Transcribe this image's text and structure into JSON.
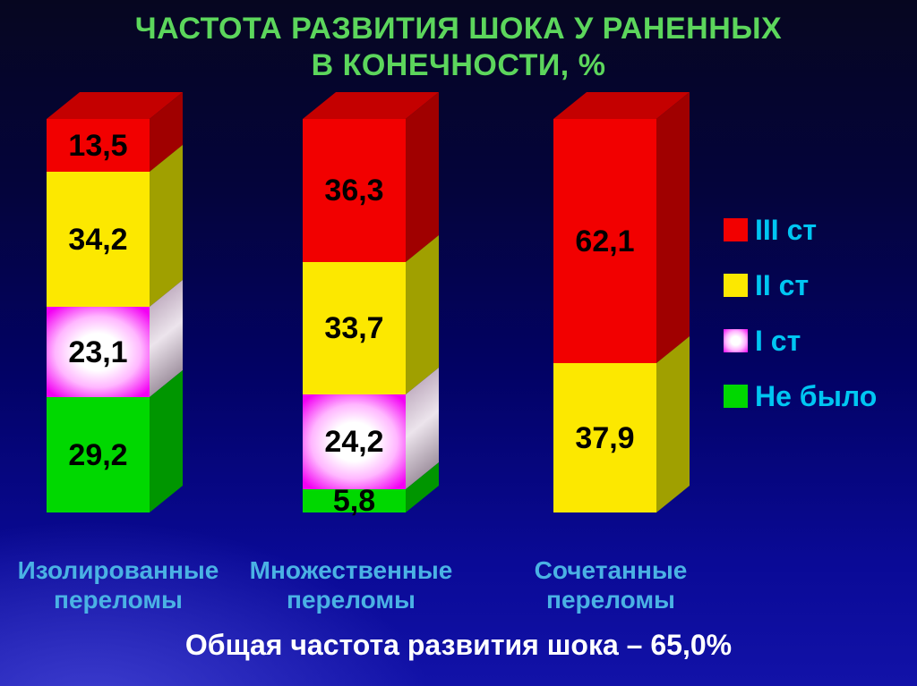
{
  "slide": {
    "title": "ЧАСТОТА РАЗВИТИЯ ШОКА У РАНЕННЫХ\nВ КОНЕЧНОСТИ, %",
    "footer": "Общая частота развития шока – 65,0%"
  },
  "legend": {
    "position": "right",
    "items": [
      {
        "label": "III ст",
        "color": "#f20000",
        "swatch": "red"
      },
      {
        "label": "II ст",
        "color": "#fce800",
        "swatch": "yellow"
      },
      {
        "label": "I ст",
        "color": "#f300f3",
        "swatch": "pink"
      },
      {
        "label": "Не было",
        "color": "#00d800",
        "swatch": "green"
      }
    ]
  },
  "palette": {
    "background_top": "#060620",
    "background_bottom": "#1212a8",
    "title_green": "#5cd65c",
    "category_label_cyan": "#4ab2e4",
    "legend_label_cyan": "#00c6f2",
    "value_label": "#000000",
    "footer_white": "#ffffff"
  },
  "chart_data": {
    "type": "bar",
    "subtype": "3d-stacked-percent",
    "title": "ЧАСТОТА РАЗВИТИЯ ШОКА У РАНЕННЫХ В КОНЕЧНОСТИ, %",
    "unit": "%",
    "ylim": [
      0,
      100
    ],
    "grid": false,
    "legend_position": "right",
    "series_order_top_to_bottom": [
      "III ст",
      "II ст",
      "I ст",
      "Не было"
    ],
    "categories": [
      "Изолированные переломы",
      "Множественные переломы",
      "Сочетанные переломы"
    ],
    "bars": [
      {
        "category": "Изолированные\nпереломы",
        "segments": [
          {
            "series": "III ст",
            "value": 13.5,
            "label": "13,5",
            "color": "red"
          },
          {
            "series": "II ст",
            "value": 34.2,
            "label": "34,2",
            "color": "yellow"
          },
          {
            "series": "I ст",
            "value": 23.1,
            "label": "23,1",
            "color": "pink"
          },
          {
            "series": "Не было",
            "value": 29.2,
            "label": "29,2",
            "color": "green"
          }
        ]
      },
      {
        "category": "Множественные\nпереломы",
        "segments": [
          {
            "series": "III ст",
            "value": 36.3,
            "label": "36,3",
            "color": "red"
          },
          {
            "series": "II ст",
            "value": 33.7,
            "label": "33,7",
            "color": "yellow"
          },
          {
            "series": "I ст",
            "value": 24.2,
            "label": "24,2",
            "color": "pink"
          },
          {
            "series": "Не было",
            "value": 5.8,
            "label": "5,8",
            "color": "green"
          }
        ]
      },
      {
        "category": "Сочетанные\nпереломы",
        "segments": [
          {
            "series": "III ст",
            "value": 62.1,
            "label": "62,1",
            "color": "red"
          },
          {
            "series": "II ст",
            "value": 37.9,
            "label": "37,9",
            "color": "yellow"
          }
        ]
      }
    ],
    "overall_shock_rate_percent": 65.0,
    "annotation": "Общая частота развития шока – 65,0%"
  }
}
